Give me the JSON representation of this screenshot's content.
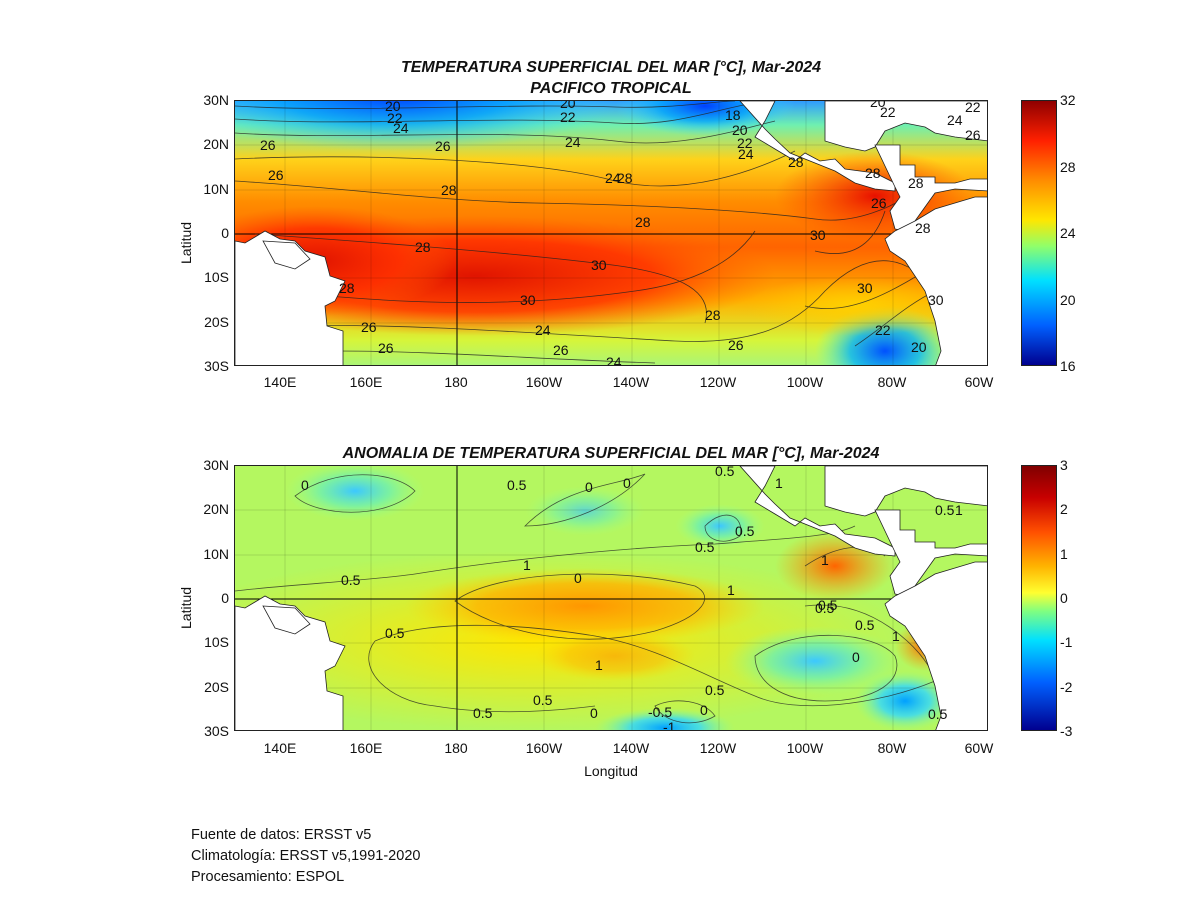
{
  "map_top": {
    "title_line1": "TEMPERATURA SUPERFICIAL DEL MAR [°C], Mar-2024",
    "title_line2": "PACIFICO TROPICAL",
    "ylabel": "Latitud",
    "lat_ticks": [
      "30N",
      "20N",
      "10N",
      "0",
      "10S",
      "20S",
      "30S"
    ],
    "lon_ticks": [
      "140E",
      "160E",
      "180",
      "160W",
      "140W",
      "120W",
      "100W",
      "80W",
      "60W"
    ],
    "colorbar_ticks": [
      "32",
      "28",
      "24",
      "20",
      "16"
    ],
    "colorbar_range": [
      16,
      32
    ],
    "contour_labels": [
      "20",
      "22",
      "24",
      "20",
      "22",
      "24",
      "18",
      "20",
      "22",
      "24",
      "20",
      "22",
      "24",
      "22",
      "26",
      "26",
      "26",
      "24",
      "26",
      "28",
      "28",
      "28",
      "28",
      "26",
      "28",
      "28",
      "30",
      "28",
      "30",
      "30",
      "30",
      "30",
      "26",
      "24",
      "28",
      "28",
      "28",
      "28",
      "22",
      "26",
      "26",
      "26",
      "24",
      "20"
    ]
  },
  "map_bottom": {
    "title": "ANOMALIA DE TEMPERATURA SUPERFICIAL DEL MAR [°C], Mar-2024",
    "ylabel": "Latitud",
    "xlabel": "Longitud",
    "lat_ticks": [
      "30N",
      "20N",
      "10N",
      "0",
      "10S",
      "20S",
      "30S"
    ],
    "lon_ticks": [
      "140E",
      "160E",
      "180",
      "160W",
      "140W",
      "120W",
      "100W",
      "80W",
      "60W"
    ],
    "colorbar_ticks": [
      "3",
      "2",
      "1",
      "0",
      "-1",
      "-2",
      "-3"
    ],
    "colorbar_range": [
      -3,
      3
    ],
    "contour_labels": [
      "0",
      "0.5",
      "0",
      "0",
      "0.5",
      "1",
      "0.5",
      "1",
      "0",
      "0.5",
      "0.5",
      "1",
      "1",
      "1",
      "0.5",
      "0.5",
      "1",
      "0.5",
      "0",
      "0.5",
      "0",
      "0.5",
      "-0.5",
      "-1",
      "0.5",
      "0",
      "0.5",
      "0.5",
      "1",
      "0.5"
    ]
  },
  "footer": {
    "line1": "Fuente de datos: ERSST v5",
    "line2": "Climatología: ERSST v5,1991-2020",
    "line3": "Procesamiento: ESPOL"
  },
  "colors": {
    "sst_scale": [
      "#00008f",
      "#0050ff",
      "#00c8ff",
      "#5affa5",
      "#e6ff1a",
      "#ffb400",
      "#ff3c00",
      "#b40000"
    ],
    "anom_scale": [
      "#00008f",
      "#0050ff",
      "#00c8ff",
      "#8cff73",
      "#ffe600",
      "#ff7800",
      "#c80000",
      "#800000"
    ],
    "land": "#ffffff"
  }
}
